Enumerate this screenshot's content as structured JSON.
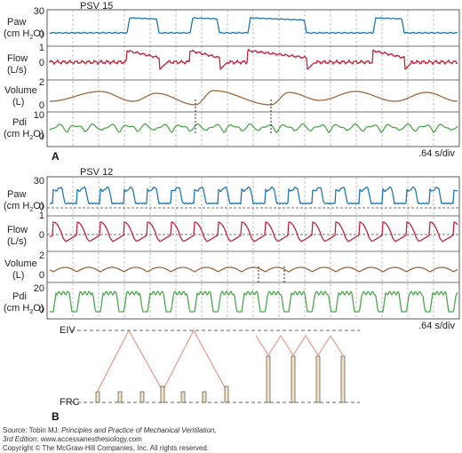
{
  "panel_a": {
    "letter": "A",
    "title": "PSV 15",
    "timebase": ".64 s/div",
    "rows": [
      {
        "label1": "Paw",
        "label2": "(cm H",
        "label2_sub": "2",
        "label2_end": "O)",
        "ticks": [
          "30",
          "0"
        ],
        "color": "#1f77b4"
      },
      {
        "label1": "Flow",
        "label2": "(L/s)",
        "label2_sub": "",
        "label2_end": "",
        "ticks": [
          "1",
          "0"
        ],
        "color": "#c0243c"
      },
      {
        "label1": "Volume",
        "label2": "(L)",
        "label2_sub": "",
        "label2_end": "",
        "ticks": [
          "2",
          "0"
        ],
        "color": "#a0653a"
      },
      {
        "label1": "Pdi",
        "label2": "(cm H",
        "label2_sub": "2",
        "label2_end": "O)",
        "ticks": [
          "10",
          "0"
        ],
        "color": "#4ca84c"
      }
    ]
  },
  "panel_b": {
    "letter": "B",
    "title": "PSV 12",
    "timebase": ".64 s/div",
    "rows": [
      {
        "label1": "Paw",
        "label2": "(cm H",
        "label2_sub": "2",
        "label2_end": "O)",
        "ticks": [
          "30",
          "0"
        ],
        "color": "#1f77b4"
      },
      {
        "label1": "Flow",
        "label2": "(L/s)",
        "label2_sub": "",
        "label2_end": "",
        "ticks": [
          "1",
          "0"
        ],
        "color": "#c0243c"
      },
      {
        "label1": "Volume",
        "label2": "(L)",
        "label2_sub": "",
        "label2_end": "",
        "ticks": [
          "2",
          "0"
        ],
        "color": "#a0653a"
      },
      {
        "label1": "Pdi",
        "label2": "(cm H",
        "label2_sub": "2",
        "label2_end": "O)",
        "ticks": [
          "20",
          "0"
        ],
        "color": "#4ca84c"
      }
    ],
    "lung_volume_labels": {
      "top": "EIV",
      "bottom": "FRC"
    }
  },
  "source": {
    "prefix": "Source: Tobin MJ: ",
    "book": "Principles and Practice of Mechanical Ventilation,",
    "edition": "3rd Edition",
    "site": ": www.accessanesthesiology.com",
    "copyright": "Copyright © The McGraw-Hill Companies, Inc. All rights reserved."
  }
}
